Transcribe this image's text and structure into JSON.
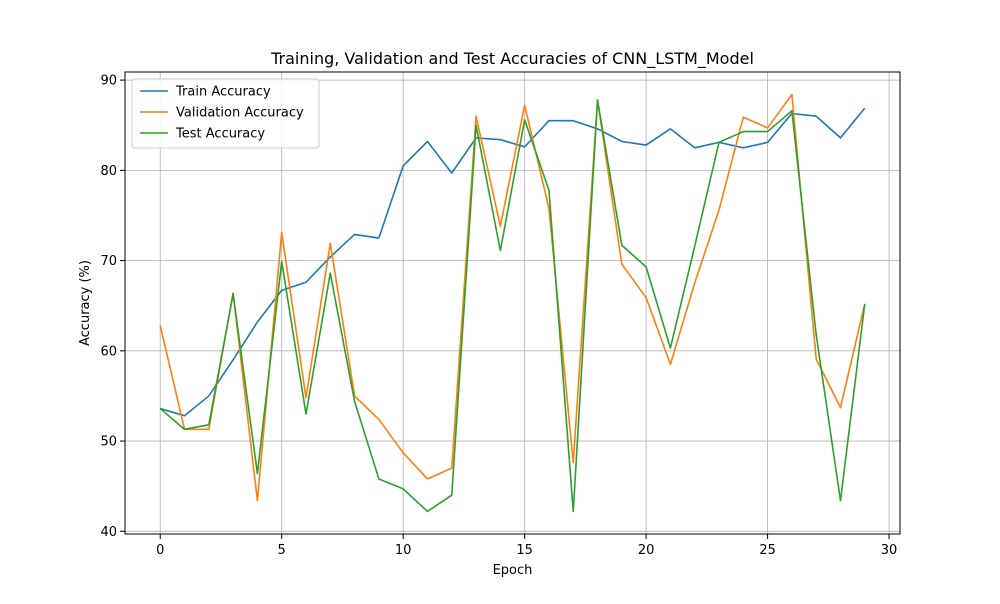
{
  "chart_data": {
    "type": "line",
    "title": "Training, Validation and Test Accuracies of CNN_LSTM_Model",
    "xlabel": "Epoch",
    "ylabel": "Accuracy (%)",
    "xlim": [
      -1.45,
      30.45
    ],
    "ylim": [
      39.7,
      90.9
    ],
    "xticks": [
      0,
      5,
      10,
      15,
      20,
      25,
      30
    ],
    "yticks": [
      40,
      50,
      60,
      70,
      80,
      90
    ],
    "grid": true,
    "legend_position": "top-left",
    "x": [
      0,
      1,
      2,
      3,
      4,
      5,
      6,
      7,
      8,
      9,
      10,
      11,
      12,
      13,
      14,
      15,
      16,
      17,
      18,
      19,
      20,
      21,
      22,
      23,
      24,
      25,
      26,
      27,
      28,
      29
    ],
    "series": [
      {
        "name": "Train Accuracy",
        "color": "#1f77b4",
        "values": [
          53.6,
          52.8,
          55.0,
          59.0,
          63.2,
          66.7,
          67.6,
          70.4,
          72.9,
          72.5,
          80.5,
          83.2,
          79.7,
          83.6,
          83.4,
          82.6,
          85.5,
          85.5,
          84.6,
          83.2,
          82.8,
          84.6,
          82.5,
          83.1,
          82.5,
          83.1,
          86.3,
          86.0,
          83.6,
          86.9
        ]
      },
      {
        "name": "Validation Accuracy",
        "color": "#ff7f0e",
        "values": [
          62.8,
          51.3,
          51.3,
          66.4,
          43.4,
          73.1,
          54.8,
          71.9,
          55.0,
          52.4,
          48.7,
          45.8,
          47.0,
          86.0,
          73.8,
          87.2,
          75.8,
          47.6,
          87.8,
          69.6,
          65.9,
          58.5,
          67.5,
          75.6,
          85.9,
          84.7,
          88.4,
          59.1,
          53.7,
          65.2
        ]
      },
      {
        "name": "Test Accuracy",
        "color": "#2ca02c",
        "values": [
          53.6,
          51.3,
          51.8,
          66.3,
          46.4,
          69.9,
          53.0,
          68.6,
          54.4,
          45.8,
          44.7,
          42.2,
          44.0,
          85.0,
          71.1,
          85.6,
          77.8,
          42.2,
          87.8,
          71.7,
          69.3,
          60.3,
          71.6,
          83.1,
          84.3,
          84.3,
          86.6,
          61.8,
          43.4,
          65.2
        ]
      }
    ]
  }
}
